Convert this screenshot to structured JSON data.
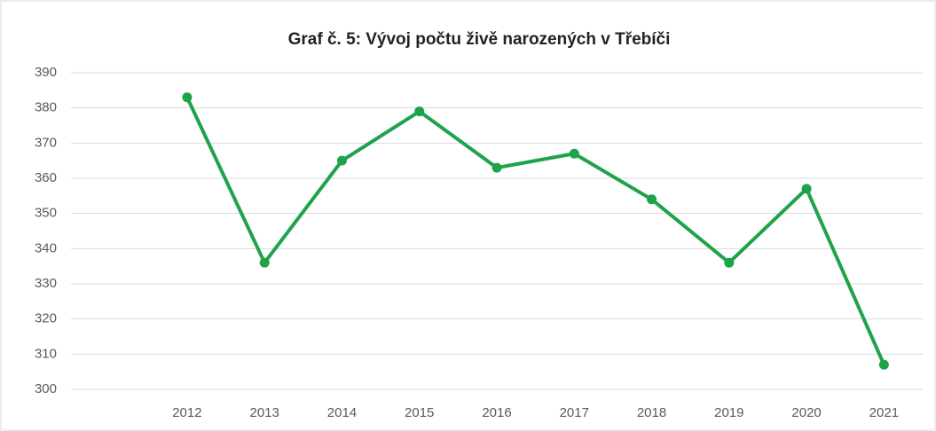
{
  "chart_data": {
    "type": "line",
    "title": "Graf č. 5: Vývoj počtu živě narozených v Třebíči",
    "categories": [
      null,
      "2012",
      "2013",
      "2014",
      "2015",
      "2016",
      "2017",
      "2018",
      "2019",
      "2020",
      "2021"
    ],
    "values": [
      null,
      383,
      336,
      365,
      379,
      363,
      367,
      354,
      336,
      357,
      307
    ],
    "color": "#1fa34a",
    "ylim": [
      300,
      390
    ],
    "yticks": [
      300,
      310,
      320,
      330,
      340,
      350,
      360,
      370,
      380,
      390
    ],
    "grid": true
  }
}
